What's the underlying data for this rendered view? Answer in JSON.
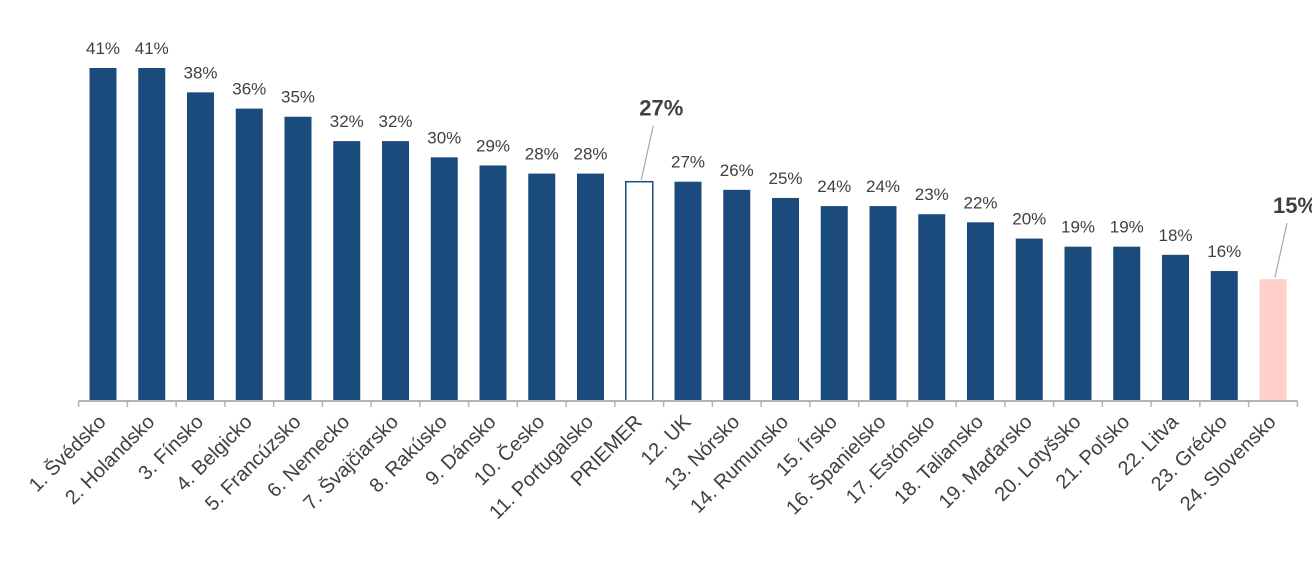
{
  "chart_data": {
    "type": "bar",
    "title": "",
    "xlabel": "",
    "ylabel": "",
    "ylim": [
      0,
      41
    ],
    "grid": false,
    "categories": [
      "1. Švédsko",
      "2. Holandsko",
      "3. Fínsko",
      "4. Belgicko",
      "5. Francúzsko",
      "6. Nemecko",
      "7. Švajčiarsko",
      "8. Rakúsko",
      "9. Dánsko",
      "10. Česko",
      "11. Portugalsko",
      "PRIEMER",
      "12. UK",
      "13. Nórsko",
      "14. Rumunsko",
      "15. Írsko",
      "16. Španielsko",
      "17. Estónsko",
      "18. Taliansko",
      "19. Maďarsko",
      "20. Lotyšsko",
      "21. Poľsko",
      "22. Litva",
      "23. Grécko",
      "24. Slovensko"
    ],
    "values": [
      41,
      41,
      38,
      36,
      35,
      32,
      32,
      30,
      29,
      28,
      28,
      27,
      27,
      26,
      25,
      24,
      24,
      23,
      22,
      20,
      19,
      19,
      18,
      16,
      15
    ],
    "value_labels": [
      "41%",
      "41%",
      "38%",
      "36%",
      "35%",
      "32%",
      "32%",
      "30%",
      "29%",
      "28%",
      "28%",
      "27%",
      "27%",
      "26%",
      "25%",
      "24%",
      "24%",
      "23%",
      "22%",
      "20%",
      "19%",
      "19%",
      "18%",
      "16%",
      "15%"
    ],
    "highlights": {
      "PRIEMER": {
        "fill": "#ffffff",
        "stroke": "#1b4a7d",
        "label_bold": true
      },
      "24. Slovensko": {
        "fill": "#fdd0cb",
        "stroke": "none",
        "label_bold": true
      }
    },
    "colors": {
      "bar": "#1b4a7d",
      "axis": "#b3b3b3",
      "text": "#404040",
      "callout_line": "#a6a6a6"
    }
  }
}
